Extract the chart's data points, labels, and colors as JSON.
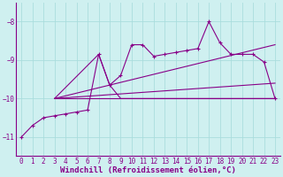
{
  "xlabel": "Windchill (Refroidissement éolien,°C)",
  "background_color": "#cff0f0",
  "grid_color": "#aadddd",
  "line_color": "#880088",
  "xlim": [
    -0.5,
    23.5
  ],
  "ylim": [
    -11.5,
    -7.5
  ],
  "yticks": [
    -11,
    -10,
    -9,
    -8
  ],
  "xticks": [
    0,
    1,
    2,
    3,
    4,
    5,
    6,
    7,
    8,
    9,
    10,
    11,
    12,
    13,
    14,
    15,
    16,
    17,
    18,
    19,
    20,
    21,
    22,
    23
  ],
  "series1_x": [
    0,
    1,
    2,
    3,
    4,
    5,
    6,
    7,
    8,
    9,
    10,
    11,
    12,
    13,
    14,
    15,
    16,
    17,
    18,
    19,
    20,
    21,
    22,
    23
  ],
  "series1_y": [
    -11.0,
    -10.7,
    -10.5,
    -10.45,
    -10.4,
    -10.35,
    -10.3,
    -8.85,
    -9.65,
    -9.4,
    -8.6,
    -8.6,
    -8.9,
    -8.85,
    -8.8,
    -8.75,
    -8.7,
    -8.0,
    -8.55,
    -8.85,
    -8.85,
    -8.85,
    -9.05,
    -10.0
  ],
  "line2_x": [
    3,
    23
  ],
  "line2_y": [
    -10.0,
    -10.0
  ],
  "line3_x": [
    3,
    23
  ],
  "line3_y": [
    -10.0,
    -9.6
  ],
  "line4_x": [
    3,
    23
  ],
  "line4_y": [
    -10.0,
    -8.6
  ],
  "line5_x": [
    3,
    7,
    8,
    9,
    23
  ],
  "line5_y": [
    -10.0,
    -8.85,
    -9.65,
    -10.0,
    -10.0
  ],
  "tick_fontsize": 5.5,
  "xlabel_fontsize": 6.5
}
